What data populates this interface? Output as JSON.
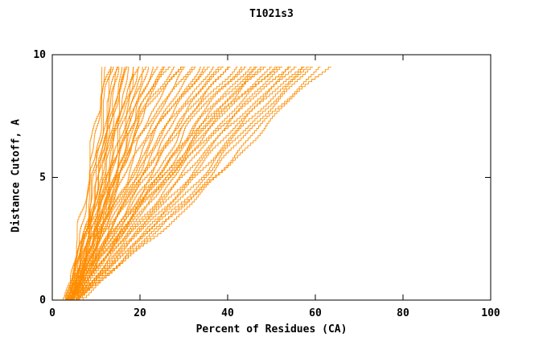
{
  "chart_data": {
    "type": "line",
    "title": "T1021s3",
    "xlabel": "Percent of Residues (CA)",
    "ylabel": "Distance Cutoff, A",
    "xlim": [
      0,
      100
    ],
    "ylim": [
      0,
      10
    ],
    "x_ticks": [
      0,
      20,
      40,
      60,
      80,
      100
    ],
    "y_ticks": [
      0,
      5,
      10
    ],
    "grid": false,
    "legend": null,
    "line_color": "#ff8c00",
    "axis_color": "#000000",
    "background_color": "#ffffff",
    "y_anchors": [
      0,
      2.5,
      5,
      7.5,
      9.5
    ],
    "curves": [
      [
        3,
        6,
        8,
        10,
        12
      ],
      [
        3,
        6.5,
        8.5,
        10.5,
        12.5
      ],
      [
        4,
        7,
        9,
        11,
        13
      ],
      [
        3.5,
        7,
        9.5,
        11.5,
        13.5
      ],
      [
        4,
        7.5,
        10,
        12,
        14
      ],
      [
        3,
        7,
        10,
        12.5,
        14.5
      ],
      [
        4.5,
        8,
        10.5,
        13,
        15
      ],
      [
        3.5,
        7.5,
        10.5,
        13,
        15.5
      ],
      [
        4,
        8,
        11,
        13.5,
        16
      ],
      [
        5,
        8.5,
        11.5,
        14,
        16.5
      ],
      [
        3,
        7.5,
        11,
        14,
        17
      ],
      [
        4,
        8,
        11.5,
        14.5,
        17.5
      ],
      [
        4.5,
        9,
        12,
        15,
        18
      ],
      [
        3.5,
        8,
        12,
        15.5,
        18.5
      ],
      [
        5,
        9.5,
        12.5,
        16,
        19
      ],
      [
        4,
        9,
        13,
        16,
        19.5
      ],
      [
        4.5,
        9.5,
        13.5,
        16.5,
        20
      ],
      [
        5,
        10,
        14,
        17,
        21
      ],
      [
        3.5,
        9,
        13.5,
        17.5,
        21.5
      ],
      [
        4,
        9.5,
        14,
        18,
        22
      ],
      [
        5,
        10.5,
        14.5,
        18.5,
        23
      ],
      [
        4.5,
        10,
        15,
        19,
        24
      ],
      [
        5.5,
        11,
        15.5,
        20,
        25
      ],
      [
        4,
        10,
        15.5,
        20.5,
        26
      ],
      [
        3,
        8,
        13,
        19,
        27
      ],
      [
        4,
        9,
        14,
        20,
        28
      ],
      [
        4.5,
        10,
        15,
        21,
        29
      ],
      [
        3.5,
        9.5,
        15.5,
        22,
        30
      ],
      [
        5,
        11,
        17,
        23,
        31
      ],
      [
        4,
        10,
        16.5,
        24,
        32
      ],
      [
        4.5,
        11,
        18,
        25,
        33
      ],
      [
        5,
        12,
        19,
        26,
        34
      ],
      [
        3.5,
        10.5,
        18,
        26,
        35
      ],
      [
        4,
        11.5,
        19.5,
        27,
        36
      ],
      [
        5,
        12.5,
        20,
        28,
        37
      ],
      [
        4.5,
        12,
        20.5,
        29,
        38
      ],
      [
        5.5,
        13,
        21,
        30,
        39
      ],
      [
        4,
        12,
        21.5,
        30.5,
        40
      ],
      [
        5,
        13.5,
        22.5,
        31,
        41
      ],
      [
        4.5,
        13,
        23,
        32,
        42
      ],
      [
        5.5,
        14,
        24,
        33,
        43
      ],
      [
        5,
        14.5,
        24.5,
        34,
        44
      ],
      [
        6,
        15,
        25,
        35,
        45
      ],
      [
        4.5,
        14,
        25.5,
        36,
        46
      ],
      [
        5,
        15,
        26,
        37,
        47
      ],
      [
        5.5,
        15.5,
        27,
        38,
        48
      ],
      [
        4,
        14,
        24,
        36,
        49
      ],
      [
        5,
        15,
        26,
        38,
        50
      ],
      [
        4.5,
        16,
        27,
        39,
        51
      ],
      [
        5.5,
        17,
        28,
        40,
        52
      ],
      [
        5,
        17.5,
        29,
        41,
        53
      ],
      [
        6,
        18,
        30,
        42,
        54
      ],
      [
        5,
        18.5,
        31,
        43,
        55
      ],
      [
        5.5,
        19,
        32,
        44,
        56
      ],
      [
        6,
        20,
        33,
        45,
        57
      ],
      [
        5,
        20,
        34,
        46,
        58
      ],
      [
        6,
        21,
        35,
        47,
        59
      ],
      [
        5.5,
        22,
        36,
        48,
        60
      ],
      [
        6,
        22,
        37,
        50,
        61
      ],
      [
        6.5,
        23,
        38,
        51,
        63
      ]
    ]
  }
}
